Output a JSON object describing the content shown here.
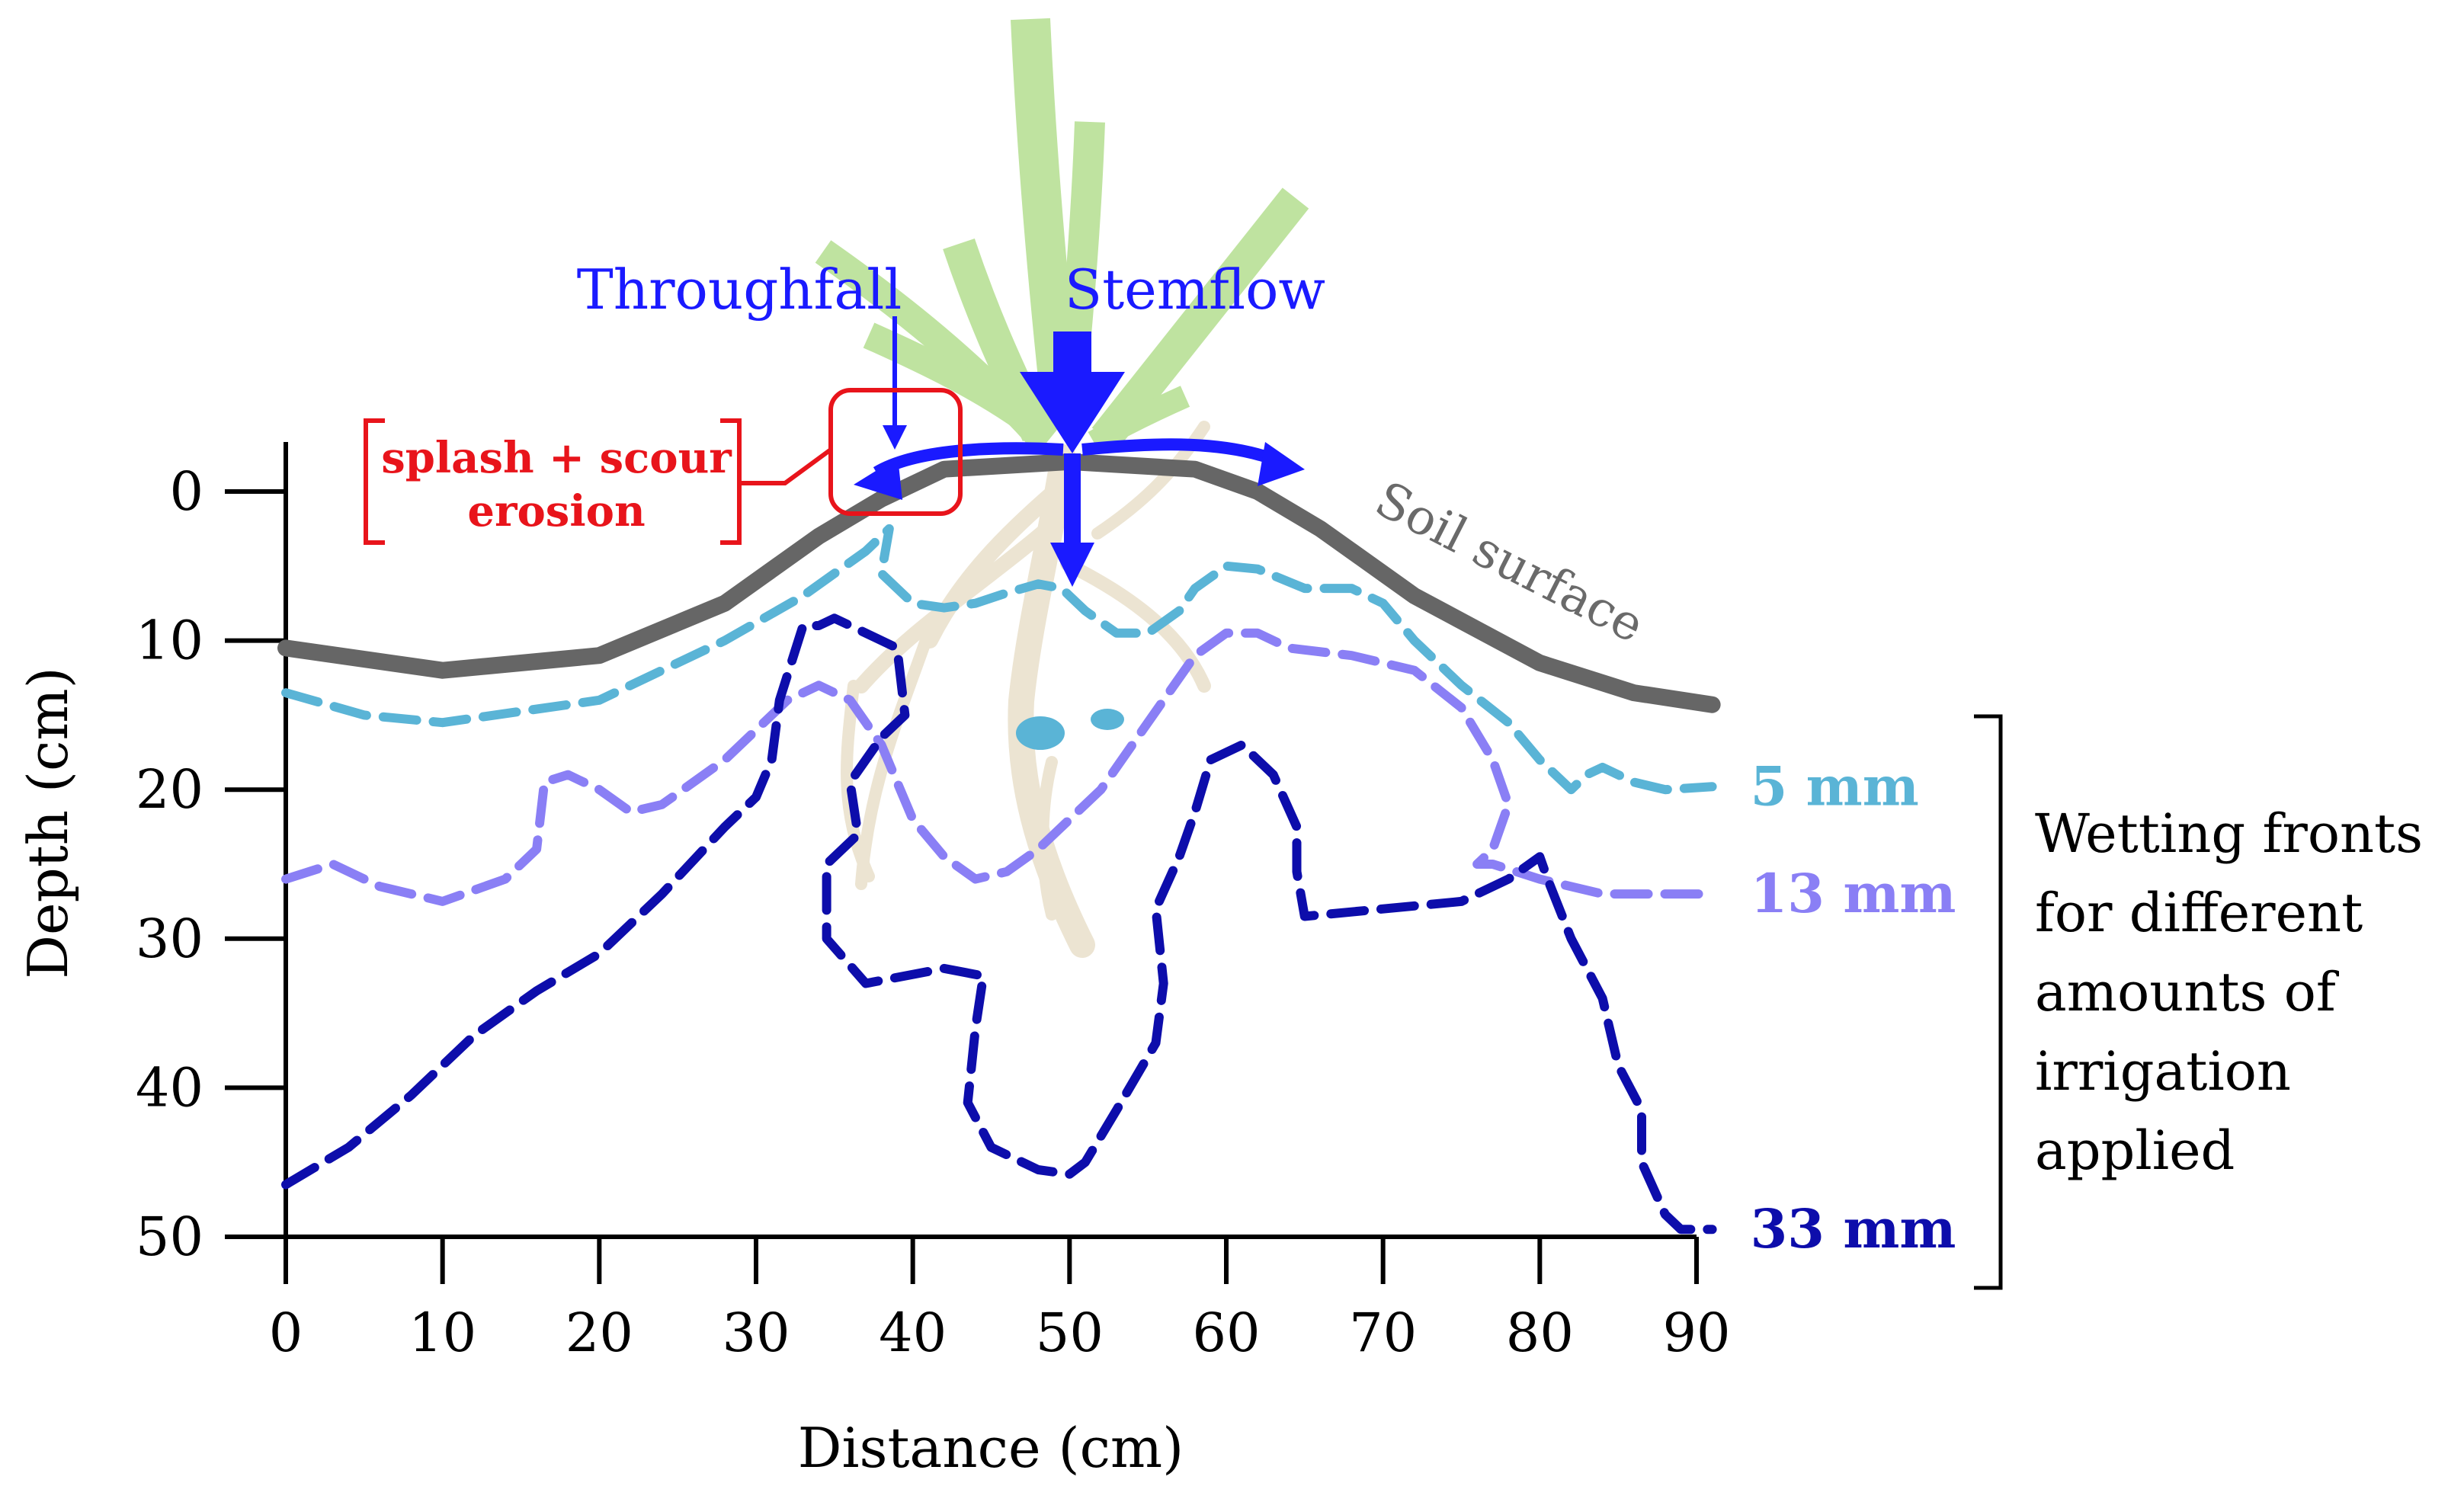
{
  "chart_data": {
    "type": "line",
    "title": "",
    "xlabel": "Distance (cm)",
    "ylabel": "Depth (cm)",
    "xlim": [
      0,
      90
    ],
    "ylim": [
      0,
      50
    ],
    "y_inverted": true,
    "x_ticks": [
      "0",
      "10",
      "20",
      "30",
      "40",
      "50",
      "60",
      "70",
      "80",
      "90"
    ],
    "y_ticks": [
      "0",
      "10",
      "20",
      "30",
      "40",
      "50"
    ],
    "soil_surface": {
      "label": "Soil surface",
      "color": "#666666",
      "x": [
        0,
        10,
        20,
        28,
        34,
        38,
        42,
        50,
        58,
        62,
        66,
        72,
        80,
        86,
        91
      ],
      "y": [
        10.5,
        12,
        11,
        7.5,
        3,
        0.5,
        -1.5,
        -2,
        -1.5,
        0,
        2.5,
        7,
        11.5,
        13.5,
        14.3
      ]
    },
    "series": [
      {
        "name": "5 mm",
        "color": "#5ab4d6",
        "x": [
          0,
          5,
          10,
          20,
          28,
          33,
          37,
          38.5,
          38,
          40,
          42,
          44,
          46,
          48,
          49.5,
          50,
          51,
          53,
          55,
          57,
          58,
          60,
          62,
          65,
          68,
          70,
          72,
          75,
          78,
          80,
          82,
          83,
          84,
          86,
          88,
          91
        ],
        "y": [
          13.5,
          15,
          15.5,
          14,
          10,
          7,
          4,
          2.5,
          5.5,
          7.5,
          7.8,
          7.5,
          6.8,
          6.2,
          6.5,
          7,
          8,
          9.5,
          9.5,
          8,
          6.5,
          5,
          5.2,
          6.5,
          6.5,
          7.5,
          10,
          13,
          15.5,
          18,
          20,
          19,
          18.5,
          19.5,
          20,
          19.8
        ]
      },
      {
        "name": "13 mm",
        "color": "#8a7ff5",
        "x": [
          0,
          3,
          6,
          10,
          14,
          16,
          16.5,
          18,
          20,
          22,
          24,
          28,
          32,
          34,
          36,
          38,
          40,
          42,
          44,
          46,
          48,
          50,
          52,
          54,
          56,
          58,
          60,
          62,
          64,
          68,
          72,
          75,
          77,
          78,
          77,
          76,
          77,
          80,
          84,
          87,
          91
        ],
        "y": [
          26,
          25,
          26.5,
          27.5,
          26,
          24,
          19.5,
          19,
          20,
          21.5,
          21,
          18,
          14,
          13,
          14,
          17,
          22,
          24.5,
          26,
          25.5,
          24,
          22,
          20,
          17,
          14,
          11,
          9.5,
          9.5,
          10.5,
          11,
          12,
          14.5,
          18,
          21,
          24,
          25,
          25,
          26,
          27,
          27,
          27
        ]
      },
      {
        "name": "33 mm",
        "color": "#0d0dab",
        "x": [
          0,
          4,
          8,
          12,
          16,
          20,
          24,
          28,
          30,
          31,
          31.5,
          33,
          34,
          35,
          36,
          39,
          39.5,
          38,
          37,
          36,
          36.5,
          34.5,
          34.5,
          37,
          42,
          44.5,
          44,
          43.5,
          45,
          48,
          50,
          51,
          53,
          55.5,
          56,
          55.5,
          57,
          58,
          59,
          61,
          63,
          64.5,
          64.5,
          65,
          70,
          75,
          78,
          80,
          80.5,
          82,
          84,
          85,
          86.5,
          86.5,
          88,
          89,
          91
        ],
        "y": [
          46.5,
          44,
          40.5,
          36.5,
          33.5,
          31,
          27,
          22.5,
          20.5,
          18,
          14,
          9,
          9,
          8.5,
          9,
          10.5,
          15,
          16.5,
          18,
          19.5,
          23,
          25,
          30,
          33,
          32,
          32.5,
          36,
          41,
          44,
          45.5,
          45.8,
          45,
          41.5,
          37,
          33,
          28,
          24.5,
          21.5,
          18,
          17,
          19,
          22.5,
          25.5,
          28.5,
          28,
          27.5,
          26,
          24.5,
          26,
          30,
          34,
          38.5,
          41.5,
          45,
          48.5,
          49.5,
          49.5
        ]
      }
    ],
    "annotations": {
      "throughfall": "Throughfall",
      "stemflow": "Stemflow",
      "erosion_line1": "splash + scour",
      "erosion_line2": "erosion",
      "legend_line1": "Wetting fronts",
      "legend_line2": "for different",
      "legend_line3": "amounts of",
      "legend_line4": "irrigation",
      "legend_line5": "applied"
    }
  }
}
